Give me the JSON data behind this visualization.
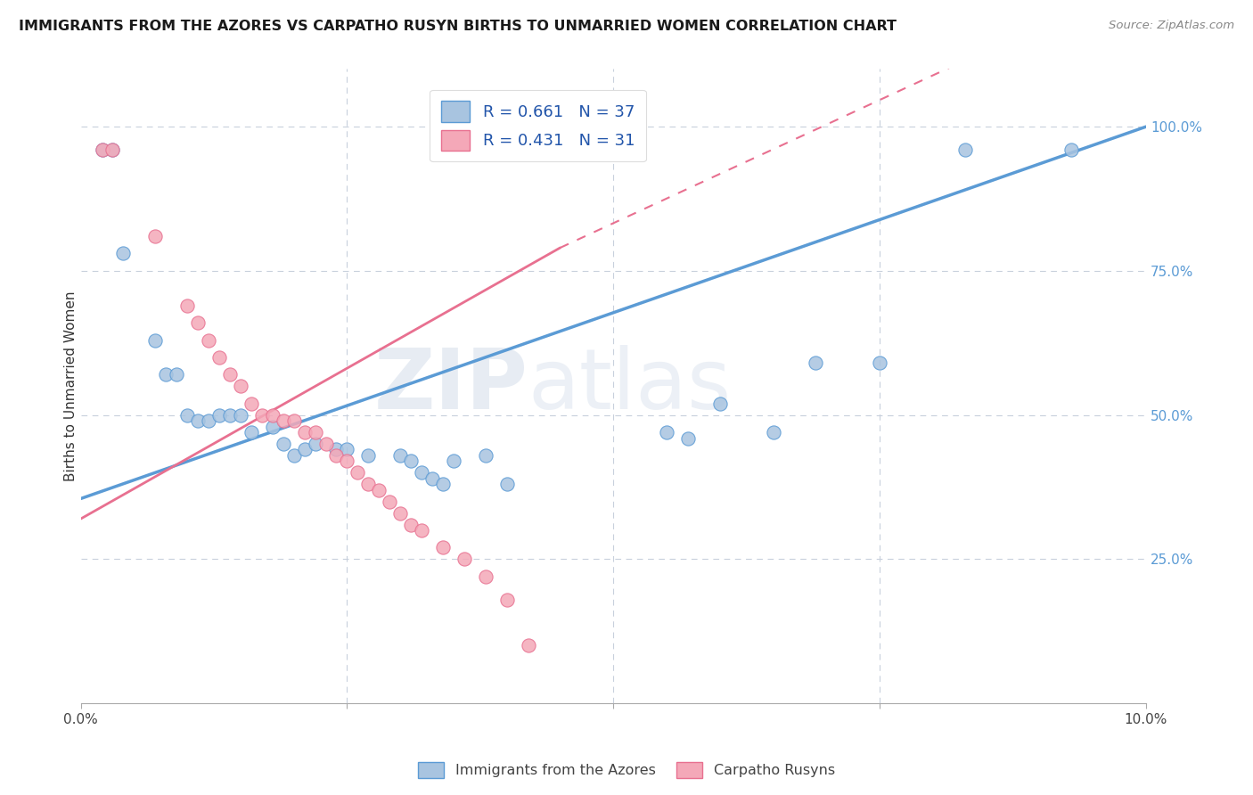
{
  "title": "IMMIGRANTS FROM THE AZORES VS CARPATHO RUSYN BIRTHS TO UNMARRIED WOMEN CORRELATION CHART",
  "source": "Source: ZipAtlas.com",
  "ylabel": "Births to Unmarried Women",
  "legend_label1": "Immigrants from the Azores",
  "legend_label2": "Carpatho Rusyns",
  "R1": 0.661,
  "N1": 37,
  "R2": 0.431,
  "N2": 31,
  "color1": "#a8c4e0",
  "color2": "#f4a8b8",
  "line1_color": "#5b9bd5",
  "line2_color": "#e87090",
  "watermark_zip": "ZIP",
  "watermark_atlas": "atlas",
  "xlim": [
    0,
    0.1
  ],
  "ylim": [
    0.0,
    1.1
  ],
  "blue_scatter": [
    [
      0.002,
      0.96
    ],
    [
      0.003,
      0.96
    ],
    [
      0.004,
      0.78
    ],
    [
      0.007,
      0.63
    ],
    [
      0.008,
      0.57
    ],
    [
      0.009,
      0.57
    ],
    [
      0.01,
      0.5
    ],
    [
      0.011,
      0.49
    ],
    [
      0.012,
      0.49
    ],
    [
      0.013,
      0.5
    ],
    [
      0.014,
      0.5
    ],
    [
      0.015,
      0.5
    ],
    [
      0.016,
      0.47
    ],
    [
      0.018,
      0.48
    ],
    [
      0.019,
      0.45
    ],
    [
      0.02,
      0.43
    ],
    [
      0.021,
      0.44
    ],
    [
      0.022,
      0.45
    ],
    [
      0.024,
      0.44
    ],
    [
      0.025,
      0.44
    ],
    [
      0.027,
      0.43
    ],
    [
      0.03,
      0.43
    ],
    [
      0.031,
      0.42
    ],
    [
      0.032,
      0.4
    ],
    [
      0.033,
      0.39
    ],
    [
      0.034,
      0.38
    ],
    [
      0.035,
      0.42
    ],
    [
      0.038,
      0.43
    ],
    [
      0.04,
      0.38
    ],
    [
      0.055,
      0.47
    ],
    [
      0.057,
      0.46
    ],
    [
      0.06,
      0.52
    ],
    [
      0.065,
      0.47
    ],
    [
      0.069,
      0.59
    ],
    [
      0.075,
      0.59
    ],
    [
      0.083,
      0.96
    ],
    [
      0.093,
      0.96
    ]
  ],
  "pink_scatter": [
    [
      0.002,
      0.96
    ],
    [
      0.003,
      0.96
    ],
    [
      0.007,
      0.81
    ],
    [
      0.01,
      0.69
    ],
    [
      0.011,
      0.66
    ],
    [
      0.012,
      0.63
    ],
    [
      0.013,
      0.6
    ],
    [
      0.014,
      0.57
    ],
    [
      0.015,
      0.55
    ],
    [
      0.016,
      0.52
    ],
    [
      0.017,
      0.5
    ],
    [
      0.018,
      0.5
    ],
    [
      0.019,
      0.49
    ],
    [
      0.02,
      0.49
    ],
    [
      0.021,
      0.47
    ],
    [
      0.022,
      0.47
    ],
    [
      0.023,
      0.45
    ],
    [
      0.024,
      0.43
    ],
    [
      0.025,
      0.42
    ],
    [
      0.026,
      0.4
    ],
    [
      0.027,
      0.38
    ],
    [
      0.028,
      0.37
    ],
    [
      0.029,
      0.35
    ],
    [
      0.03,
      0.33
    ],
    [
      0.031,
      0.31
    ],
    [
      0.032,
      0.3
    ],
    [
      0.034,
      0.27
    ],
    [
      0.036,
      0.25
    ],
    [
      0.038,
      0.22
    ],
    [
      0.04,
      0.18
    ],
    [
      0.042,
      0.1
    ]
  ],
  "blue_line": [
    [
      0.0,
      0.355
    ],
    [
      0.1,
      1.0
    ]
  ],
  "pink_line": [
    [
      0.0,
      0.32
    ],
    [
      0.045,
      0.79
    ]
  ],
  "pink_line_dashed": [
    [
      0.045,
      0.79
    ],
    [
      0.1,
      1.26
    ]
  ]
}
